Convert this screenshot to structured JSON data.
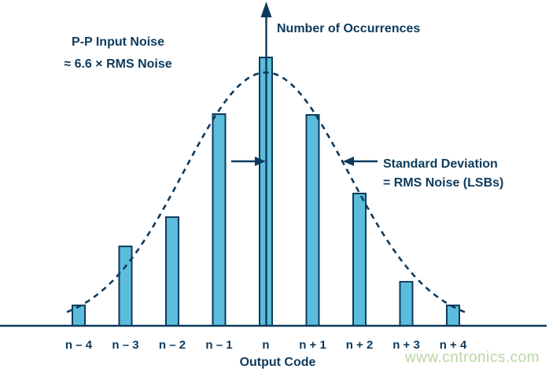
{
  "annotations": {
    "pp_noise": {
      "line1": "P-P Input Noise",
      "line2": "≈ 6.6 × RMS Noise"
    },
    "std_dev": {
      "line1": "Standard Deviation",
      "line2": "= RMS Noise (LSBs)"
    }
  },
  "watermark": "www.cntronics.com",
  "colors": {
    "navy": "#0d3a5c",
    "bar_fill": "#5cbcdb",
    "watermark_green": "#b7d6a2",
    "background": "#ffffff"
  },
  "chart_data": {
    "type": "bar",
    "title": "",
    "xlabel": "Output Code",
    "ylabel": "Number of Occurrences",
    "categories": [
      "n – 4",
      "n – 3",
      "n – 2",
      "n – 1",
      "n",
      "n + 1",
      "n + 2",
      "n + 3",
      "n + 4"
    ],
    "values": [
      0.076,
      0.296,
      0.405,
      0.789,
      1.0,
      0.786,
      0.493,
      0.164,
      0.076
    ],
    "y_scale": "relative occurrences, no numeric ticks shown",
    "grid": false,
    "legend": null,
    "overlay_curve": {
      "shape": "gaussian",
      "style": "dashed",
      "peak_relative": 0.944,
      "sigma_codes": 1.76,
      "x_range_codes": [
        -4.25,
        4.28
      ]
    }
  }
}
